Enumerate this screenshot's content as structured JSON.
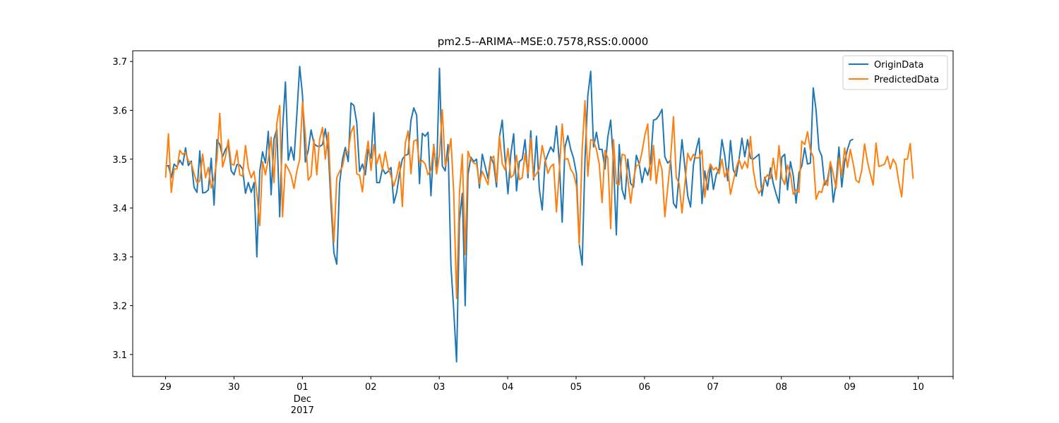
{
  "chart_data": {
    "type": "line",
    "title": "pm2.5--ARIMA--MSE:0.7578,RSS:0.0000",
    "xlabel": "",
    "ylabel": "",
    "x_ticks": [
      {
        "value": 0,
        "label": "29"
      },
      {
        "value": 1,
        "label": "30"
      },
      {
        "value": 2,
        "label": "01",
        "sublabels": [
          "Dec",
          "2017"
        ]
      },
      {
        "value": 3,
        "label": "02"
      },
      {
        "value": 4,
        "label": "03"
      },
      {
        "value": 5,
        "label": "04"
      },
      {
        "value": 6,
        "label": "05"
      },
      {
        "value": 7,
        "label": "06"
      },
      {
        "value": 8,
        "label": "07"
      },
      {
        "value": 9,
        "label": "08"
      },
      {
        "value": 10,
        "label": "09"
      },
      {
        "value": 11,
        "label": "10"
      }
    ],
    "y_ticks": [
      "3.1",
      "3.2",
      "3.3",
      "3.4",
      "3.5",
      "3.6",
      "3.7"
    ],
    "xlim": [
      -0.48,
      11.51
    ],
    "ylim": [
      3.055,
      3.722
    ],
    "legend_position": "top-right",
    "grid": false,
    "series": [
      {
        "name": "OriginData",
        "color": "#1f77b4",
        "x_start": 0.0,
        "step": 0.0417,
        "values": [
          3.485,
          3.487,
          3.462,
          3.49,
          3.484,
          3.498,
          3.488,
          3.523,
          3.487,
          3.496,
          3.442,
          3.432,
          3.517,
          3.431,
          3.432,
          3.437,
          3.502,
          3.406,
          3.54,
          3.53,
          3.505,
          3.52,
          3.53,
          3.476,
          3.468,
          3.489,
          3.488,
          3.48,
          3.43,
          3.452,
          3.432,
          3.452,
          3.3,
          3.475,
          3.515,
          3.492,
          3.557,
          3.427,
          3.541,
          3.562,
          3.382,
          3.56,
          3.658,
          3.498,
          3.525,
          3.498,
          3.59,
          3.69,
          3.63,
          3.494,
          3.518,
          3.56,
          3.532,
          3.527,
          3.526,
          3.53,
          3.562,
          3.52,
          3.405,
          3.308,
          3.285,
          3.45,
          3.5,
          3.524,
          3.495,
          3.615,
          3.61,
          3.575,
          3.475,
          3.49,
          3.468,
          3.52,
          3.502,
          3.595,
          3.452,
          3.452,
          3.481,
          3.47,
          3.475,
          3.483,
          3.41,
          3.432,
          3.472,
          3.5,
          3.508,
          3.51,
          3.58,
          3.605,
          3.59,
          3.45,
          3.553,
          3.547,
          3.555,
          3.425,
          3.53,
          3.47,
          3.686,
          3.486,
          3.476,
          3.53,
          3.283,
          3.19,
          3.085,
          3.375,
          3.43,
          3.2,
          3.468,
          3.504,
          3.495,
          3.5,
          3.441,
          3.51,
          3.486,
          3.46,
          3.505,
          3.49,
          3.443,
          3.545,
          3.58,
          3.5,
          3.429,
          3.51,
          3.552,
          3.435,
          3.495,
          3.5,
          3.54,
          3.462,
          3.558,
          3.458,
          3.547,
          3.439,
          3.396,
          3.495,
          3.51,
          3.525,
          3.515,
          3.568,
          3.495,
          3.371,
          3.525,
          3.548,
          3.52,
          3.502,
          3.47,
          3.325,
          3.283,
          3.5,
          3.63,
          3.68,
          3.525,
          3.555,
          3.52,
          3.52,
          3.48,
          3.545,
          3.58,
          3.492,
          3.345,
          3.53,
          3.438,
          3.418,
          3.5,
          3.45,
          3.443,
          3.508,
          3.49,
          3.452,
          3.482,
          3.467,
          3.492,
          3.58,
          3.582,
          3.59,
          3.602,
          3.505,
          3.492,
          3.498,
          3.41,
          3.4,
          3.47,
          3.54,
          3.485,
          3.425,
          3.402,
          3.488,
          3.52,
          3.543,
          3.409,
          3.476,
          3.437,
          3.487,
          3.438,
          3.468,
          3.48,
          3.54,
          3.507,
          3.456,
          3.538,
          3.478,
          3.465,
          3.5,
          3.543,
          3.505,
          3.54,
          3.502,
          3.5,
          3.505,
          3.51,
          3.425,
          3.463,
          3.445,
          3.482,
          3.45,
          3.428,
          3.41,
          3.504,
          3.51,
          3.437,
          3.495,
          3.466,
          3.41,
          3.472,
          3.486,
          3.523,
          3.49,
          3.492,
          3.646,
          3.6,
          3.52,
          3.506,
          3.447,
          3.458,
          3.492,
          3.412,
          3.451,
          3.525,
          3.443,
          3.495,
          3.52,
          3.538,
          3.541
        ]
      },
      {
        "name": "PredictedData",
        "color": "#ff7f0e",
        "x_start": 0.0,
        "step": 0.0417,
        "values": [
          3.462,
          3.552,
          3.432,
          3.48,
          3.48,
          3.518,
          3.51,
          3.514,
          3.496,
          3.492,
          3.47,
          3.452,
          3.455,
          3.51,
          3.462,
          3.483,
          3.441,
          3.46,
          3.5,
          3.594,
          3.484,
          3.505,
          3.54,
          3.49,
          3.488,
          3.518,
          3.468,
          3.465,
          3.528,
          3.482,
          3.462,
          3.475,
          3.43,
          3.364,
          3.495,
          3.468,
          3.5,
          3.545,
          3.452,
          3.574,
          3.61,
          3.382,
          3.49,
          3.48,
          3.467,
          3.44,
          3.475,
          3.5,
          3.617,
          3.55,
          3.457,
          3.466,
          3.54,
          3.468,
          3.54,
          3.565,
          3.5,
          3.555,
          3.43,
          3.33,
          3.462,
          3.475,
          3.485,
          3.515,
          3.515,
          3.555,
          3.568,
          3.47,
          3.467,
          3.433,
          3.5,
          3.537,
          3.477,
          3.53,
          3.49,
          3.51,
          3.478,
          3.515,
          3.483,
          3.466,
          3.445,
          3.465,
          3.495,
          3.403,
          3.532,
          3.558,
          3.47,
          3.537,
          3.54,
          3.492,
          3.497,
          3.49,
          3.468,
          3.478,
          3.528,
          3.47,
          3.51,
          3.601,
          3.486,
          3.505,
          3.542,
          3.43,
          3.215,
          3.43,
          3.51,
          3.305,
          3.516,
          3.5,
          3.492,
          3.49,
          3.45,
          3.475,
          3.462,
          3.448,
          3.5,
          3.506,
          3.453,
          3.548,
          3.491,
          3.478,
          3.522,
          3.462,
          3.468,
          3.508,
          3.458,
          3.462,
          3.512,
          3.47,
          3.543,
          3.462,
          3.47,
          3.48,
          3.528,
          3.5,
          3.471,
          3.485,
          3.49,
          3.392,
          3.475,
          3.572,
          3.5,
          3.501,
          3.479,
          3.47,
          3.445,
          3.325,
          3.52,
          3.62,
          3.465,
          3.54,
          3.537,
          3.52,
          3.49,
          3.411,
          3.518,
          3.502,
          3.358,
          3.54,
          3.45,
          3.448,
          3.51,
          3.508,
          3.46,
          3.41,
          3.458,
          3.487,
          3.488,
          3.515,
          3.55,
          3.572,
          3.457,
          3.528,
          3.45,
          3.5,
          3.478,
          3.382,
          3.442,
          3.5,
          3.587,
          3.462,
          3.45,
          3.39,
          3.448,
          3.512,
          3.497,
          3.51,
          3.502,
          3.503,
          3.518,
          3.422,
          3.47,
          3.49,
          3.478,
          3.483,
          3.47,
          3.5,
          3.463,
          3.48,
          3.428,
          3.455,
          3.482,
          3.5,
          3.48,
          3.495,
          3.482,
          3.546,
          3.478,
          3.443,
          3.43,
          3.44,
          3.46,
          3.468,
          3.46,
          3.502,
          3.458,
          3.528,
          3.462,
          3.448,
          3.488,
          3.47,
          3.428,
          3.437,
          3.432,
          3.537,
          3.53,
          3.556,
          3.518,
          3.505,
          3.418,
          3.434,
          3.432,
          3.457,
          3.446,
          3.495,
          3.47,
          3.44,
          3.502,
          3.467,
          3.523,
          3.483,
          3.52,
          3.491,
          3.457,
          3.452,
          3.477,
          3.531,
          3.495,
          3.47,
          3.447,
          3.533,
          3.485,
          3.487,
          3.49,
          3.506,
          3.48,
          3.5,
          3.49,
          3.453,
          3.423,
          3.5,
          3.5,
          3.532,
          3.46
        ]
      }
    ]
  }
}
